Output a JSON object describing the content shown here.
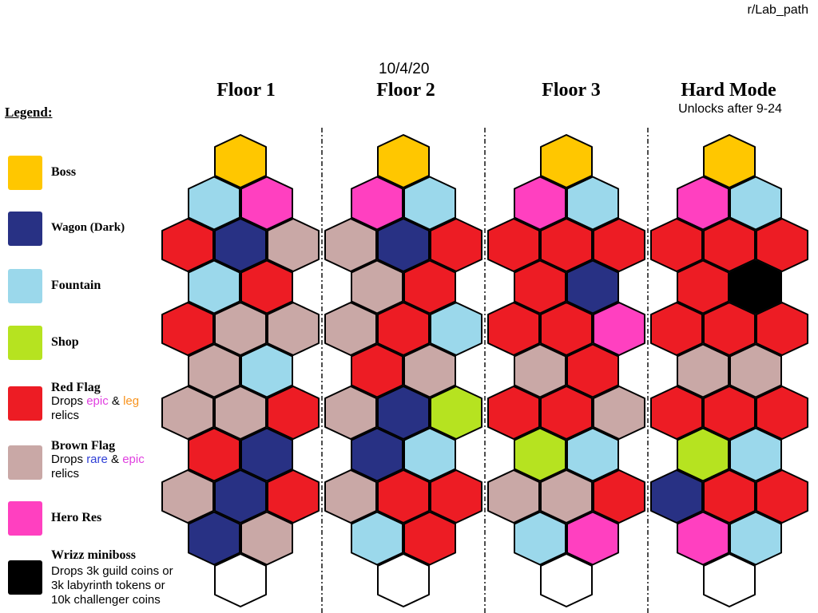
{
  "credit": "r/Lab_path",
  "date": "10/4/20",
  "floors": [
    {
      "title": "Floor 1",
      "subtitle": ""
    },
    {
      "title": "Floor 2",
      "subtitle": ""
    },
    {
      "title": "Floor 3",
      "subtitle": ""
    },
    {
      "title": "Hard Mode",
      "subtitle": "Unlocks after 9-24"
    }
  ],
  "legend": {
    "title": "Legend:",
    "items": [
      {
        "key": "boss",
        "name": "Boss",
        "color": "#FFC700"
      },
      {
        "key": "wagon",
        "name": "Wagon (Dark)",
        "color": "#283184"
      },
      {
        "key": "fountain",
        "name": "Fountain",
        "color": "#9BD8EB"
      },
      {
        "key": "shop",
        "name": "Shop",
        "color": "#B6E320"
      },
      {
        "key": "red",
        "name": "Red Flag",
        "color": "#ED1C24",
        "desc": {
          "pre": "Drops ",
          "w1": "epic",
          "c1": "#E040E0",
          "mid": " & ",
          "w2": "leg",
          "c2": "#F7931E",
          "post": "relics"
        }
      },
      {
        "key": "brown",
        "name": "Brown Flag",
        "color": "#C9A8A6",
        "desc": {
          "pre": "Drops ",
          "w1": "rare",
          "c1": "#2F3FD6",
          "mid": " & ",
          "w2": "epic",
          "c2": "#E040E0",
          "post": "relics"
        }
      },
      {
        "key": "hero",
        "name": "Hero Res",
        "color": "#FF40C0"
      },
      {
        "key": "miniboss",
        "name": "Wrizz miniboss",
        "color": "#000000",
        "desc_lines": [
          "Drops 3k guild coins or",
          "3k labyrinth tokens or",
          "10k challenger coins"
        ]
      }
    ]
  },
  "start_color": "#FFFFFF",
  "maps": [
    {
      "name": "Floor 1",
      "rows": [
        [
          "boss"
        ],
        [
          "fountain",
          "hero"
        ],
        [
          "red",
          "wagon",
          "brown"
        ],
        [
          "fountain",
          "red"
        ],
        [
          "red",
          "brown",
          "brown"
        ],
        [
          "brown",
          "fountain"
        ],
        [
          "brown",
          "brown",
          "red"
        ],
        [
          "red",
          "wagon"
        ],
        [
          "brown",
          "wagon",
          "red"
        ],
        [
          "wagon",
          "brown"
        ],
        [
          "start"
        ]
      ]
    },
    {
      "name": "Floor 2",
      "rows": [
        [
          "boss"
        ],
        [
          "hero",
          "fountain"
        ],
        [
          "brown",
          "wagon",
          "red"
        ],
        [
          "brown",
          "red"
        ],
        [
          "brown",
          "red",
          "fountain"
        ],
        [
          "red",
          "brown"
        ],
        [
          "brown",
          "wagon",
          "shop"
        ],
        [
          "wagon",
          "fountain"
        ],
        [
          "brown",
          "red",
          "red"
        ],
        [
          "fountain",
          "red"
        ],
        [
          "start"
        ]
      ]
    },
    {
      "name": "Floor 3",
      "rows": [
        [
          "boss"
        ],
        [
          "hero",
          "fountain"
        ],
        [
          "red",
          "red",
          "red"
        ],
        [
          "red",
          "wagon"
        ],
        [
          "red",
          "red",
          "hero"
        ],
        [
          "brown",
          "red"
        ],
        [
          "red",
          "red",
          "brown"
        ],
        [
          "shop",
          "fountain"
        ],
        [
          "brown",
          "brown",
          "red"
        ],
        [
          "fountain",
          "hero"
        ],
        [
          "start"
        ]
      ]
    },
    {
      "name": "Hard Mode",
      "rows": [
        [
          "boss"
        ],
        [
          "hero",
          "fountain"
        ],
        [
          "red",
          "red",
          "red"
        ],
        [
          "red",
          "miniboss"
        ],
        [
          "red",
          "red",
          "red"
        ],
        [
          "brown",
          "brown"
        ],
        [
          "red",
          "red",
          "red"
        ],
        [
          "shop",
          "fountain"
        ],
        [
          "wagon",
          "red",
          "red"
        ],
        [
          "hero",
          "fountain"
        ],
        [
          "start"
        ]
      ]
    }
  ]
}
